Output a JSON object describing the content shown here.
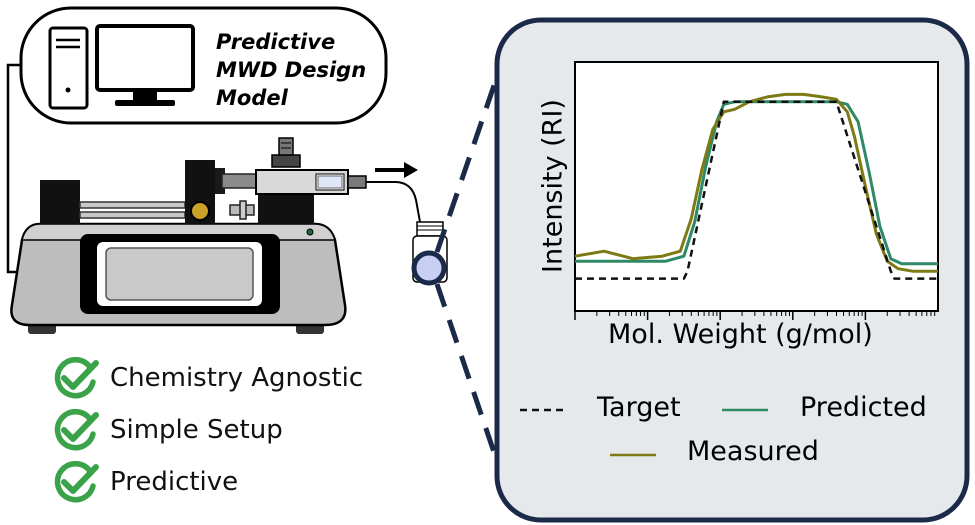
{
  "model_box": {
    "title_lines": [
      "Predictive",
      "MWD Design",
      "Model"
    ]
  },
  "features": [
    {
      "label": "Chemistry Agnostic",
      "icon": "check-circle-icon"
    },
    {
      "label": "Simple Setup",
      "icon": "check-circle-icon"
    },
    {
      "label": "Predictive",
      "icon": "check-circle-icon"
    }
  ],
  "colors": {
    "target": "#111111",
    "predicted": "#2e8a66",
    "measured": "#7d7a14",
    "panel_bg": "#e6e9ec",
    "panel_border": "#1b2a48",
    "check": "#3aa34a"
  },
  "chart_data": {
    "type": "line",
    "xlabel": "Mol. Weight (g/mol)",
    "ylabel": "Intensity (RI)",
    "x_scale": "log",
    "x_ticks_labeled": false,
    "y_ticks_labeled": false,
    "legend_placement": "below",
    "series": [
      {
        "name": "Target",
        "style": "dashed",
        "x": [
          0.0,
          0.3,
          0.31,
          0.41,
          0.72,
          0.87,
          0.88,
          1.0
        ],
        "y": [
          0.13,
          0.13,
          0.16,
          0.84,
          0.84,
          0.16,
          0.13,
          0.13
        ]
      },
      {
        "name": "Predicted",
        "style": "solid",
        "x": [
          0.0,
          0.25,
          0.3,
          0.33,
          0.36,
          0.39,
          0.41,
          0.44,
          0.72,
          0.75,
          0.78,
          0.81,
          0.84,
          0.87,
          0.9,
          1.0
        ],
        "y": [
          0.2,
          0.2,
          0.22,
          0.36,
          0.58,
          0.76,
          0.83,
          0.84,
          0.84,
          0.83,
          0.76,
          0.56,
          0.34,
          0.21,
          0.19,
          0.19
        ]
      },
      {
        "name": "Measured",
        "style": "solid",
        "x": [
          0.0,
          0.08,
          0.16,
          0.24,
          0.29,
          0.32,
          0.35,
          0.38,
          0.41,
          0.44,
          0.48,
          0.53,
          0.58,
          0.63,
          0.68,
          0.72,
          0.75,
          0.77,
          0.8,
          0.83,
          0.86,
          0.89,
          0.93,
          1.0
        ],
        "y": [
          0.22,
          0.24,
          0.21,
          0.22,
          0.24,
          0.37,
          0.57,
          0.73,
          0.8,
          0.81,
          0.84,
          0.86,
          0.87,
          0.87,
          0.86,
          0.85,
          0.8,
          0.7,
          0.5,
          0.31,
          0.2,
          0.17,
          0.16,
          0.16
        ]
      }
    ]
  }
}
